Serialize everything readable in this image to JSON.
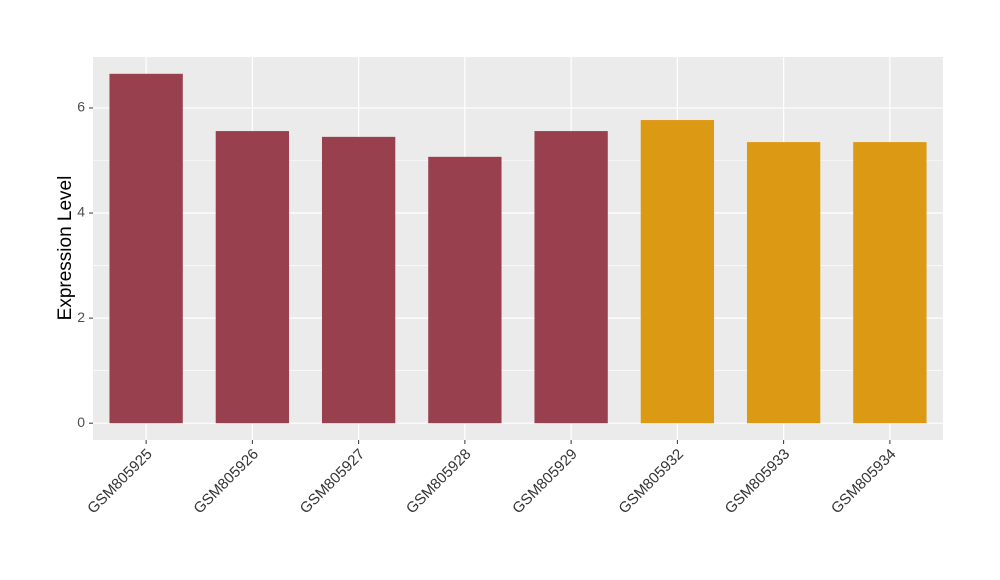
{
  "chart_data": {
    "type": "bar",
    "y_label": "Expression Level",
    "categories": [
      "GSM805925",
      "GSM805926",
      "GSM805927",
      "GSM805928",
      "GSM805929",
      "GSM805932",
      "GSM805933",
      "GSM805934"
    ],
    "values": [
      6.65,
      5.56,
      5.45,
      5.07,
      5.56,
      5.77,
      5.35,
      5.35
    ],
    "colors": [
      "#99404f",
      "#99404f",
      "#99404f",
      "#99404f",
      "#99404f",
      "#dc9914",
      "#dc9914",
      "#dc9914"
    ],
    "ylim": [
      -0.32,
      6.97
    ],
    "yticks": [
      0,
      2,
      4,
      6
    ],
    "grid": true,
    "minor_grid": true
  }
}
